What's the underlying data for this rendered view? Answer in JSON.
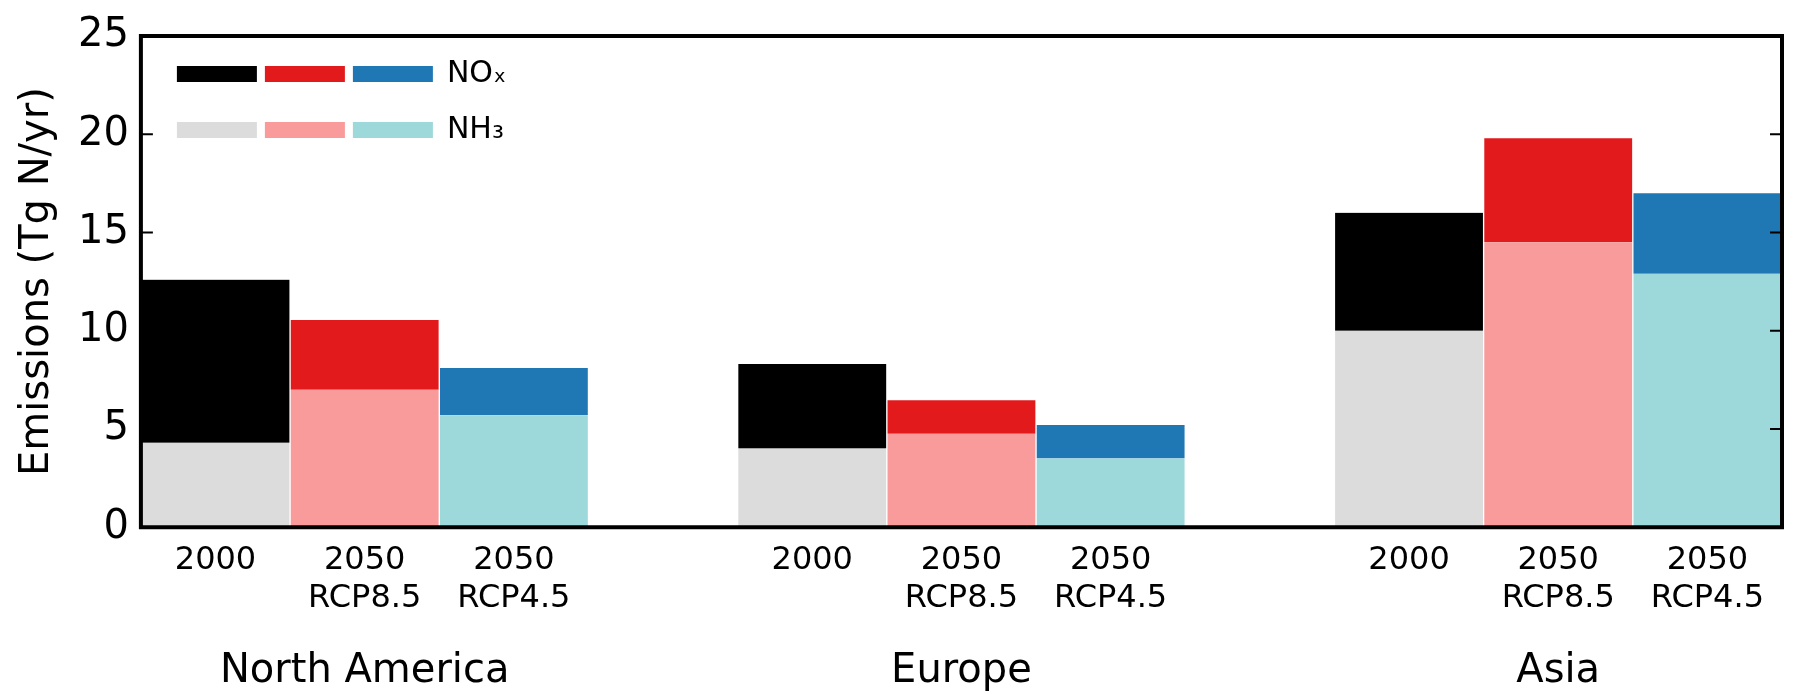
{
  "chart_data": {
    "type": "bar",
    "stacked": true,
    "ylabel": "Emissions (Tg N/yr)",
    "categories": [
      "2000",
      "2050\nRCP8.5",
      "2050\nRCP4.5",
      null,
      "2000",
      "2050\nRCP8.5",
      "2050\nRCP4.5",
      null,
      "2000",
      "2050\nRCP8.5",
      "2050\nRCP4.5"
    ],
    "series": [
      {
        "name": "NH₃",
        "colors": [
          "#dcdcdc",
          "#f99b9b",
          "#9dd8da",
          null,
          "#dcdcdc",
          "#f99b9b",
          "#9dd8da",
          null,
          "#dcdcdc",
          "#f99b9b",
          "#9dd8da"
        ],
        "values": [
          4.3,
          7.0,
          5.7,
          null,
          4.0,
          4.75,
          3.5,
          null,
          10.0,
          14.5,
          12.9
        ]
      },
      {
        "name": "NOₓ",
        "colors": [
          "#000000",
          "#e31a1c",
          "#1f78b4",
          null,
          "#000000",
          "#e31a1c",
          "#1f78b4",
          null,
          "#000000",
          "#e31a1c",
          "#1f78b4"
        ],
        "values": [
          8.3,
          3.55,
          2.4,
          null,
          4.3,
          1.71,
          1.7,
          null,
          6.0,
          5.3,
          4.1
        ]
      }
    ],
    "ylim": [
      0,
      25
    ],
    "yticks": [
      0,
      5,
      10,
      15,
      20,
      25
    ],
    "grid": false,
    "legend": "top left",
    "annotations": [
      "North America",
      "Europe",
      "Asia"
    ]
  }
}
